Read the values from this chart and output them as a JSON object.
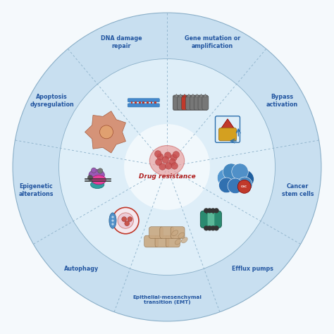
{
  "title": "Drug resistance",
  "bg_color": "#f5f9fc",
  "outer_ring_color": "#c8dff0",
  "inner_area_color": "#deeef8",
  "center_area_color": "#edf5fb",
  "divider_color": "#8aafc8",
  "text_color": "#2255a0",
  "center_text_color": "#b02020",
  "outer_r": 0.97,
  "mid_r": 0.68,
  "icon_r": 0.44,
  "center_r": 0.17,
  "n_segments": 9,
  "segment_mids_deg": [
    110,
    70,
    30,
    -10,
    -50,
    -90,
    -130,
    -170,
    150
  ],
  "divider_angles_deg": [
    90,
    50,
    10,
    -30,
    -70,
    -110,
    -150,
    170,
    130
  ],
  "labels": [
    "DNA damage\nrepair",
    "Gene mutation or\namplification",
    "Bypass\nactivation",
    "Cancer\nstem cells",
    "Efflux pumps",
    "Epithelial-mesenchymal\ntransition (EMT)",
    "Autophagy",
    "Epigenetic\nalterations",
    "Apoptosis\ndysregulation"
  ],
  "icon_angles_deg": [
    110,
    70,
    30,
    -10,
    -50,
    -90,
    -130,
    -170,
    150
  ]
}
